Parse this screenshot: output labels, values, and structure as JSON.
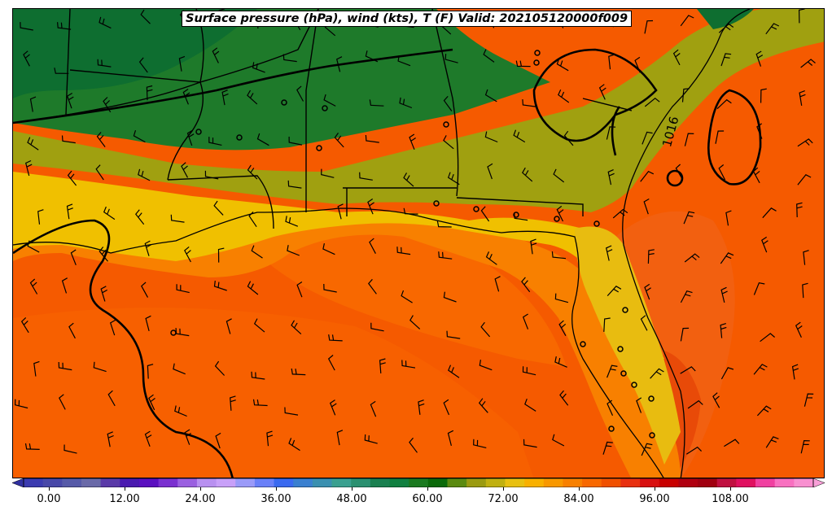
{
  "title": "Surface pressure (hPa), wind (kts), T (F) Valid: 202105120000f009",
  "isobar_label": "1016",
  "colorbar": {
    "tick_labels": [
      "0.00",
      "12.00",
      "24.00",
      "36.00",
      "48.00",
      "60.00",
      "72.00",
      "84.00",
      "96.00",
      "108.00"
    ],
    "colors": [
      "#3b3bb0",
      "#4848a8",
      "#565aa8",
      "#6a6aa8",
      "#5a3aa8",
      "#4a1ab0",
      "#5a10c0",
      "#7a30d0",
      "#9a60e0",
      "#b890f0",
      "#c8a0f8",
      "#9a9af8",
      "#6a80f8",
      "#3a6af0",
      "#3a80d0",
      "#3a90b0",
      "#3aa090",
      "#2a9070",
      "#1a8050",
      "#108040",
      "#1a7a20",
      "#0a6a0a",
      "#5a8a10",
      "#9a9a10",
      "#c0b010",
      "#e8c010",
      "#f8b000",
      "#f89800",
      "#f88000",
      "#f86800",
      "#f05000",
      "#e83010",
      "#d81010",
      "#c80000",
      "#b00010",
      "#a00010",
      "#c01040",
      "#e01060",
      "#f040a0",
      "#f870c0",
      "#f890d0"
    ]
  },
  "map": {
    "ocean_color": "#f55a00",
    "state_boundary_color": "#000000",
    "contour_color": "#000000"
  }
}
